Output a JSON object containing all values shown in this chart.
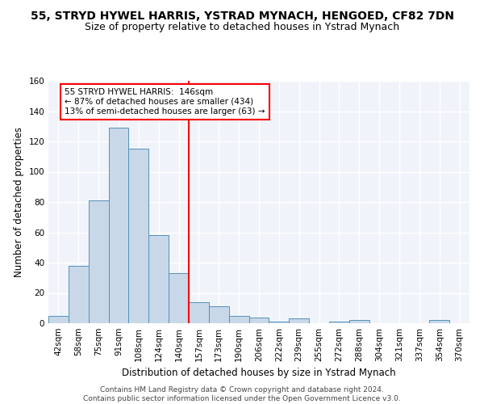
{
  "title": "55, STRYD HYWEL HARRIS, YSTRAD MYNACH, HENGOED, CF82 7DN",
  "subtitle": "Size of property relative to detached houses in Ystrad Mynach",
  "xlabel": "Distribution of detached houses by size in Ystrad Mynach",
  "ylabel": "Number of detached properties",
  "footer_line1": "Contains HM Land Registry data © Crown copyright and database right 2024.",
  "footer_line2": "Contains public sector information licensed under the Open Government Licence v3.0.",
  "categories": [
    "42sqm",
    "58sqm",
    "75sqm",
    "91sqm",
    "108sqm",
    "124sqm",
    "140sqm",
    "157sqm",
    "173sqm",
    "190sqm",
    "206sqm",
    "222sqm",
    "239sqm",
    "255sqm",
    "272sqm",
    "288sqm",
    "304sqm",
    "321sqm",
    "337sqm",
    "354sqm",
    "370sqm"
  ],
  "bar_values": [
    5,
    38,
    81,
    129,
    115,
    58,
    33,
    14,
    11,
    5,
    4,
    1,
    3,
    0,
    1,
    2,
    0,
    0,
    0,
    2,
    0
  ],
  "bar_color": "#c8d8e8",
  "bar_edge_color": "#5590bb",
  "vline_x": 6.5,
  "vline_color": "red",
  "annotation_text": "55 STRYD HYWEL HARRIS:  146sqm\n← 87% of detached houses are smaller (434)\n13% of semi-detached houses are larger (63) →",
  "annotation_box_color": "white",
  "annotation_box_edge_color": "red",
  "ylim": [
    0,
    160
  ],
  "yticks": [
    0,
    20,
    40,
    60,
    80,
    100,
    120,
    140,
    160
  ],
  "background_color": "#f0f4fa",
  "grid_color": "white",
  "title_fontsize": 10,
  "subtitle_fontsize": 9,
  "xlabel_fontsize": 8.5,
  "ylabel_fontsize": 8.5,
  "tick_fontsize": 7.5,
  "annotation_fontsize": 7.5,
  "footer_fontsize": 6.5
}
